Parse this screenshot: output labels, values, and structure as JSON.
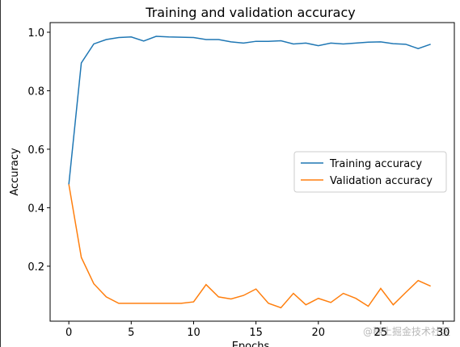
{
  "chart_data": {
    "type": "line",
    "title": "Training and validation accuracy",
    "xlabel": "Epochs",
    "ylabel": "Accuracy",
    "x": [
      0,
      1,
      2,
      3,
      4,
      5,
      6,
      7,
      8,
      9,
      10,
      11,
      12,
      13,
      14,
      15,
      16,
      17,
      18,
      19,
      20,
      21,
      22,
      23,
      24,
      25,
      26,
      27,
      28,
      29
    ],
    "series": [
      {
        "name": "Training accuracy",
        "color": "#1f77b4",
        "values": [
          0.48,
          0.895,
          0.96,
          0.975,
          0.982,
          0.984,
          0.97,
          0.986,
          0.984,
          0.983,
          0.982,
          0.975,
          0.975,
          0.967,
          0.963,
          0.969,
          0.969,
          0.971,
          0.96,
          0.963,
          0.954,
          0.963,
          0.96,
          0.963,
          0.966,
          0.967,
          0.961,
          0.959,
          0.944,
          0.959
        ]
      },
      {
        "name": "Validation accuracy",
        "color": "#ff7f0e",
        "values": [
          0.48,
          0.23,
          0.14,
          0.095,
          0.073,
          0.073,
          0.073,
          0.073,
          0.073,
          0.073,
          0.078,
          0.137,
          0.095,
          0.088,
          0.1,
          0.122,
          0.073,
          0.058,
          0.107,
          0.068,
          0.09,
          0.076,
          0.107,
          0.09,
          0.063,
          0.124,
          0.068,
          0.11,
          0.151,
          0.132
        ]
      }
    ],
    "xlim": [
      -1.5,
      30.9
    ],
    "ylim": [
      0.012,
      1.033
    ],
    "xticks": [
      0,
      5,
      10,
      15,
      20,
      25,
      30
    ],
    "yticks": [
      {
        "value": 0.2,
        "label": "0.2"
      },
      {
        "value": 0.4,
        "label": "0.4"
      },
      {
        "value": 0.6,
        "label": "0.6"
      },
      {
        "value": 0.8,
        "label": "0.8"
      },
      {
        "value": 1.0,
        "label": "1.0"
      }
    ],
    "legend": "center right",
    "grid": false,
    "watermark": "@稀土掘金技术社区"
  }
}
